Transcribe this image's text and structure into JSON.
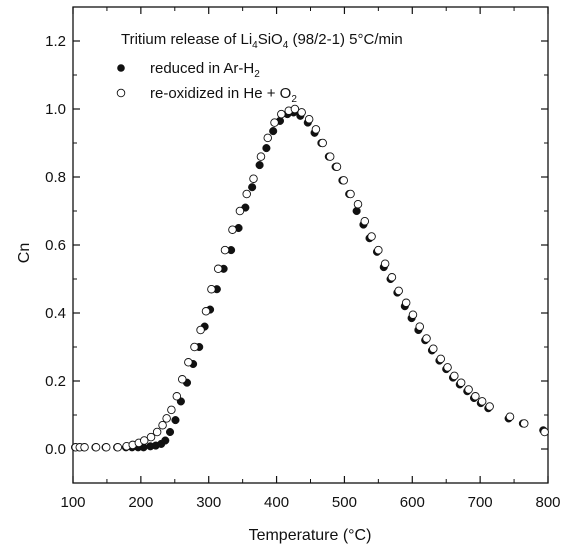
{
  "chart_data": {
    "type": "scatter",
    "title": {
      "prefix": "Tritium release of Li",
      "sub1": "4",
      "middle": "SiO",
      "sub2": "4",
      "suffix": " (98/2-1) 5°C/min"
    },
    "xlabel": "Temperature (°C)",
    "ylabel": "Cn",
    "xlim": [
      100,
      800
    ],
    "ylim": [
      -0.1,
      1.3
    ],
    "xticks": [
      "100",
      "200",
      "300",
      "400",
      "500",
      "600",
      "700",
      "800"
    ],
    "yticks": [
      "0.0",
      "0.2",
      "0.4",
      "0.6",
      "0.8",
      "1.0",
      "1.2"
    ],
    "grid": false,
    "legend_position": "top-left",
    "series": [
      {
        "name": "reduced in Ar-H2",
        "legend": {
          "text": "reduced in Ar-H",
          "sub": "2"
        },
        "marker": "filled-circle",
        "color": "#111111",
        "x": [
          103,
          109,
          116,
          133,
          148,
          165,
          178,
          187,
          196,
          204,
          214,
          222,
          230,
          236,
          243,
          251,
          259,
          268,
          277,
          286,
          294,
          302,
          312,
          322,
          333,
          344,
          354,
          364,
          375,
          385,
          395,
          405,
          416,
          425,
          435,
          446,
          456,
          466,
          477,
          487,
          497,
          507,
          518,
          528,
          537,
          548,
          558,
          568,
          578,
          589,
          599,
          609,
          619,
          629,
          640,
          650,
          660,
          670,
          681,
          691,
          701,
          712,
          742,
          763,
          793
        ],
        "y": [
          0.005,
          0.005,
          0.005,
          0.005,
          0.005,
          0.005,
          0.005,
          0.005,
          0.005,
          0.005,
          0.008,
          0.01,
          0.015,
          0.025,
          0.05,
          0.085,
          0.14,
          0.195,
          0.25,
          0.3,
          0.36,
          0.41,
          0.47,
          0.53,
          0.585,
          0.65,
          0.71,
          0.77,
          0.835,
          0.885,
          0.935,
          0.965,
          0.985,
          0.99,
          0.98,
          0.96,
          0.93,
          0.9,
          0.86,
          0.83,
          0.79,
          0.75,
          0.7,
          0.66,
          0.62,
          0.58,
          0.535,
          0.5,
          0.46,
          0.42,
          0.385,
          0.35,
          0.32,
          0.29,
          0.26,
          0.235,
          0.21,
          0.19,
          0.17,
          0.15,
          0.135,
          0.12,
          0.09,
          0.075,
          0.055
        ]
      },
      {
        "name": "re-oxidized in He + O2",
        "legend": {
          "text": "re-oxidized in He + O",
          "sub": "2"
        },
        "marker": "open-circle",
        "color": "#111111",
        "x": [
          104,
          110,
          117,
          134,
          149,
          166,
          179,
          188,
          197,
          205,
          215,
          224,
          232,
          238,
          245,
          253,
          261,
          270,
          279,
          288,
          296,
          304,
          314,
          324,
          335,
          346,
          356,
          366,
          377,
          387,
          397,
          407,
          418,
          427,
          437,
          448,
          458,
          468,
          479,
          489,
          499,
          509,
          520,
          530,
          540,
          550,
          560,
          570,
          580,
          591,
          601,
          611,
          621,
          631,
          642,
          652,
          662,
          672,
          683,
          693,
          703,
          714,
          744,
          765,
          795
        ],
        "y": [
          0.005,
          0.005,
          0.005,
          0.005,
          0.005,
          0.005,
          0.008,
          0.012,
          0.018,
          0.025,
          0.035,
          0.05,
          0.07,
          0.09,
          0.115,
          0.155,
          0.205,
          0.255,
          0.3,
          0.35,
          0.405,
          0.47,
          0.53,
          0.585,
          0.645,
          0.7,
          0.75,
          0.795,
          0.86,
          0.915,
          0.96,
          0.985,
          0.995,
          1.0,
          0.99,
          0.97,
          0.94,
          0.9,
          0.86,
          0.83,
          0.79,
          0.75,
          0.72,
          0.67,
          0.625,
          0.585,
          0.545,
          0.505,
          0.465,
          0.43,
          0.395,
          0.36,
          0.325,
          0.295,
          0.265,
          0.24,
          0.215,
          0.195,
          0.175,
          0.155,
          0.14,
          0.125,
          0.095,
          0.075,
          0.05
        ]
      }
    ]
  }
}
